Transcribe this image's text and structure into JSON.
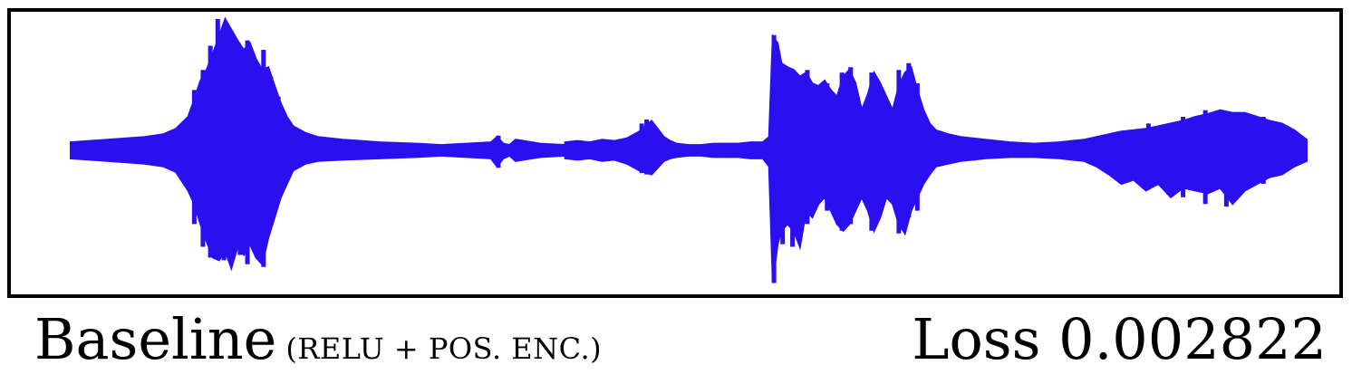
{
  "chart_data": {
    "type": "area",
    "series": [
      {
        "color": "#2a0ff0",
        "x": [
          0,
          0.015,
          0.03,
          0.045,
          0.06,
          0.075,
          0.085,
          0.095,
          0.1,
          0.105,
          0.11,
          0.115,
          0.12,
          0.125,
          0.13,
          0.135,
          0.14,
          0.145,
          0.15,
          0.155,
          0.16,
          0.165,
          0.17,
          0.175,
          0.18,
          0.19,
          0.2,
          0.22,
          0.25,
          0.28,
          0.3,
          0.32,
          0.34,
          0.345,
          0.35,
          0.355,
          0.36,
          0.38,
          0.4,
          0.4,
          0.41,
          0.42,
          0.43,
          0.44,
          0.45,
          0.46,
          0.47,
          0.475,
          0.48,
          0.485,
          0.49,
          0.5,
          0.51,
          0.52,
          0.53,
          0.54,
          0.55,
          0.56,
          0.565,
          0.568,
          0.572,
          0.575,
          0.58,
          0.585,
          0.59,
          0.595,
          0.6,
          0.605,
          0.61,
          0.615,
          0.62,
          0.625,
          0.63,
          0.635,
          0.64,
          0.645,
          0.65,
          0.655,
          0.66,
          0.665,
          0.67,
          0.675,
          0.68,
          0.685,
          0.69,
          0.695,
          0.7,
          0.71,
          0.72,
          0.73,
          0.74,
          0.76,
          0.78,
          0.8,
          0.81,
          0.82,
          0.83,
          0.84,
          0.85,
          0.86,
          0.87,
          0.88,
          0.89,
          0.9,
          0.91,
          0.92,
          0.93,
          0.94,
          0.95,
          0.96,
          0.97,
          0.98,
          0.99,
          1.0
        ],
        "upper": [
          0.06,
          0.07,
          0.08,
          0.09,
          0.1,
          0.12,
          0.16,
          0.25,
          0.38,
          0.52,
          0.6,
          0.72,
          0.85,
          0.98,
          0.9,
          0.82,
          0.75,
          0.8,
          0.68,
          0.6,
          0.62,
          0.48,
          0.35,
          0.25,
          0.18,
          0.13,
          0.1,
          0.08,
          0.06,
          0.05,
          0.04,
          0.05,
          0.06,
          0.1,
          0.05,
          0.04,
          0.08,
          0.05,
          0.04,
          0.06,
          0.07,
          0.06,
          0.08,
          0.07,
          0.09,
          0.14,
          0.22,
          0.16,
          0.1,
          0.07,
          0.05,
          0.04,
          0.04,
          0.05,
          0.05,
          0.05,
          0.06,
          0.06,
          0.1,
          0.85,
          0.8,
          0.65,
          0.62,
          0.6,
          0.55,
          0.58,
          0.5,
          0.48,
          0.52,
          0.45,
          0.4,
          0.55,
          0.6,
          0.5,
          0.3,
          0.42,
          0.58,
          0.5,
          0.4,
          0.3,
          0.48,
          0.58,
          0.62,
          0.45,
          0.3,
          0.2,
          0.15,
          0.12,
          0.1,
          0.09,
          0.08,
          0.06,
          0.05,
          0.06,
          0.07,
          0.08,
          0.1,
          0.12,
          0.14,
          0.15,
          0.16,
          0.18,
          0.2,
          0.22,
          0.25,
          0.27,
          0.3,
          0.28,
          0.28,
          0.25,
          0.22,
          0.2,
          0.15,
          0.08
        ],
        "lower": [
          -0.06,
          -0.07,
          -0.08,
          -0.09,
          -0.1,
          -0.12,
          -0.16,
          -0.3,
          -0.4,
          -0.55,
          -0.68,
          -0.8,
          -0.82,
          -0.75,
          -0.88,
          -0.72,
          -0.78,
          -0.7,
          -0.8,
          -0.85,
          -0.65,
          -0.5,
          -0.35,
          -0.25,
          -0.15,
          -0.1,
          -0.08,
          -0.07,
          -0.06,
          -0.05,
          -0.04,
          -0.05,
          -0.06,
          -0.12,
          -0.06,
          -0.04,
          -0.08,
          -0.05,
          -0.04,
          -0.06,
          -0.07,
          -0.06,
          -0.08,
          -0.07,
          -0.1,
          -0.15,
          -0.18,
          -0.13,
          -0.08,
          -0.06,
          -0.05,
          -0.04,
          -0.04,
          -0.05,
          -0.05,
          -0.05,
          -0.06,
          -0.06,
          -0.12,
          -0.98,
          -0.7,
          -0.6,
          -0.55,
          -0.6,
          -0.72,
          -0.45,
          -0.5,
          -0.4,
          -0.35,
          -0.45,
          -0.55,
          -0.6,
          -0.55,
          -0.45,
          -0.35,
          -0.45,
          -0.6,
          -0.5,
          -0.35,
          -0.4,
          -0.55,
          -0.62,
          -0.45,
          -0.35,
          -0.25,
          -0.18,
          -0.12,
          -0.1,
          -0.08,
          -0.07,
          -0.06,
          -0.05,
          -0.05,
          -0.06,
          -0.07,
          -0.08,
          -0.12,
          -0.18,
          -0.25,
          -0.22,
          -0.3,
          -0.25,
          -0.35,
          -0.28,
          -0.3,
          -0.32,
          -0.28,
          -0.4,
          -0.3,
          -0.25,
          -0.2,
          -0.18,
          -0.12,
          -0.08
        ],
        "spikes": [
          {
            "x": 0.1,
            "y0": -0.55,
            "y1": 0.45
          },
          {
            "x": 0.107,
            "y0": -0.72,
            "y1": 0.6
          },
          {
            "x": 0.113,
            "y0": -0.8,
            "y1": 0.78
          },
          {
            "x": 0.119,
            "y0": -0.6,
            "y1": 0.98
          },
          {
            "x": 0.124,
            "y0": -0.82,
            "y1": 0.88
          },
          {
            "x": 0.131,
            "y0": -0.7,
            "y1": 0.85
          },
          {
            "x": 0.137,
            "y0": -0.78,
            "y1": 0.7
          },
          {
            "x": 0.143,
            "y0": -0.85,
            "y1": 0.82
          },
          {
            "x": 0.149,
            "y0": -0.65,
            "y1": 0.65
          },
          {
            "x": 0.156,
            "y0": -0.87,
            "y1": 0.75
          },
          {
            "x": 0.162,
            "y0": -0.5,
            "y1": 0.55
          },
          {
            "x": 0.168,
            "y0": -0.35,
            "y1": 0.4
          },
          {
            "x": 0.346,
            "y0": -0.13,
            "y1": 0.11
          },
          {
            "x": 0.462,
            "y0": -0.17,
            "y1": 0.2
          },
          {
            "x": 0.466,
            "y0": -0.18,
            "y1": 0.23
          },
          {
            "x": 0.569,
            "y0": -0.99,
            "y1": 0.86
          },
          {
            "x": 0.576,
            "y0": -0.7,
            "y1": 0.62
          },
          {
            "x": 0.584,
            "y0": -0.72,
            "y1": 0.58
          },
          {
            "x": 0.596,
            "y0": -0.55,
            "y1": 0.6
          },
          {
            "x": 0.612,
            "y0": -0.45,
            "y1": 0.5
          },
          {
            "x": 0.624,
            "y0": -0.6,
            "y1": 0.58
          },
          {
            "x": 0.631,
            "y0": -0.55,
            "y1": 0.62
          },
          {
            "x": 0.648,
            "y0": -0.6,
            "y1": 0.58
          },
          {
            "x": 0.67,
            "y0": -0.62,
            "y1": 0.6
          },
          {
            "x": 0.678,
            "y0": -0.5,
            "y1": 0.65
          },
          {
            "x": 0.685,
            "y0": -0.45,
            "y1": 0.5
          },
          {
            "x": 0.85,
            "y0": -0.2,
            "y1": 0.12
          },
          {
            "x": 0.872,
            "y0": -0.28,
            "y1": 0.2
          },
          {
            "x": 0.9,
            "y0": -0.35,
            "y1": 0.25
          },
          {
            "x": 0.918,
            "y0": -0.4,
            "y1": 0.3
          },
          {
            "x": 0.935,
            "y0": -0.42,
            "y1": 0.27
          },
          {
            "x": 0.95,
            "y0": -0.3,
            "y1": 0.28
          },
          {
            "x": 0.965,
            "y0": -0.25,
            "y1": 0.25
          }
        ]
      }
    ],
    "xlim": [
      0,
      1
    ],
    "ylim": [
      -1,
      1
    ],
    "grid": false,
    "axes_ticks": false
  },
  "caption": {
    "method": "Baseline",
    "method_detail": "(RELU + POS. ENC.)",
    "loss_text": "Loss 0.002822"
  }
}
